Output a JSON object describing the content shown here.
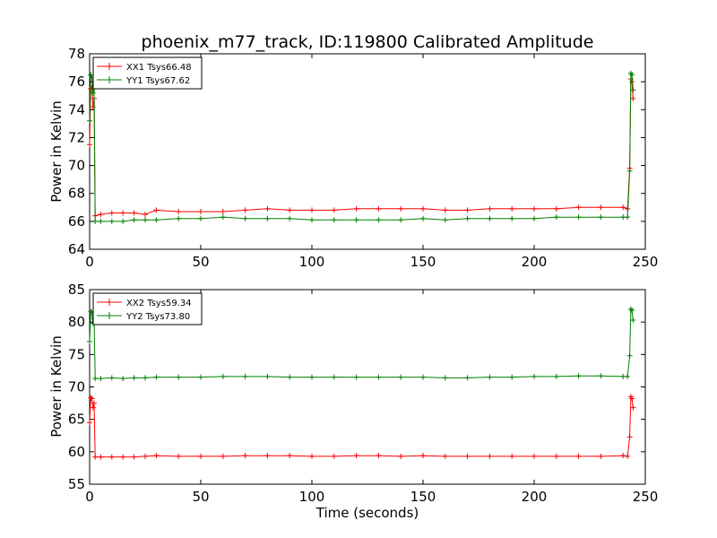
{
  "chart_data": {
    "title": "phoenix_m77_track, ID:119800 Calibrated Amplitude",
    "xlabel": "Time (seconds)",
    "charts": [
      {
        "type": "line",
        "ylabel": "Power in Kelvin",
        "xlim": [
          0,
          250
        ],
        "ylim": [
          64,
          78
        ],
        "xticks": [
          0,
          50,
          100,
          150,
          200,
          250
        ],
        "yticks": [
          64,
          66,
          68,
          70,
          72,
          74,
          76,
          78
        ],
        "legend_position": "top-left",
        "grid": false,
        "series": [
          {
            "name": "XX1 Tsys66.48",
            "color": "#ff0000",
            "points": [
              [
                0,
                71.5
              ],
              [
                0.5,
                75.5
              ],
              [
                1,
                75.6
              ],
              [
                1.5,
                74.2
              ],
              [
                2,
                74.8
              ],
              [
                2.5,
                66.4
              ],
              [
                5,
                66.5
              ],
              [
                10,
                66.6
              ],
              [
                15,
                66.6
              ],
              [
                20,
                66.6
              ],
              [
                25,
                66.5
              ],
              [
                30,
                66.8
              ],
              [
                40,
                66.7
              ],
              [
                50,
                66.7
              ],
              [
                60,
                66.7
              ],
              [
                70,
                66.8
              ],
              [
                80,
                66.9
              ],
              [
                90,
                66.8
              ],
              [
                100,
                66.8
              ],
              [
                110,
                66.8
              ],
              [
                120,
                66.9
              ],
              [
                130,
                66.9
              ],
              [
                140,
                66.9
              ],
              [
                150,
                66.9
              ],
              [
                160,
                66.8
              ],
              [
                170,
                66.8
              ],
              [
                180,
                66.9
              ],
              [
                190,
                66.9
              ],
              [
                200,
                66.9
              ],
              [
                210,
                66.9
              ],
              [
                220,
                67.0
              ],
              [
                230,
                67.0
              ],
              [
                240,
                67.0
              ],
              [
                242,
                66.9
              ],
              [
                243,
                69.8
              ],
              [
                243.5,
                76.2
              ],
              [
                244,
                76.0
              ],
              [
                244.5,
                74.8
              ]
            ]
          },
          {
            "name": "YY1 Tsys67.62",
            "color": "#008000",
            "points": [
              [
                0,
                73.2
              ],
              [
                0.5,
                76.5
              ],
              [
                1,
                76.3
              ],
              [
                1.5,
                75.2
              ],
              [
                2,
                75.6
              ],
              [
                2.5,
                66.0
              ],
              [
                5,
                66.0
              ],
              [
                10,
                66.0
              ],
              [
                15,
                66.0
              ],
              [
                20,
                66.1
              ],
              [
                25,
                66.1
              ],
              [
                30,
                66.1
              ],
              [
                40,
                66.2
              ],
              [
                50,
                66.2
              ],
              [
                60,
                66.3
              ],
              [
                70,
                66.2
              ],
              [
                80,
                66.2
              ],
              [
                90,
                66.2
              ],
              [
                100,
                66.1
              ],
              [
                110,
                66.1
              ],
              [
                120,
                66.1
              ],
              [
                130,
                66.1
              ],
              [
                140,
                66.1
              ],
              [
                150,
                66.2
              ],
              [
                160,
                66.1
              ],
              [
                170,
                66.2
              ],
              [
                180,
                66.2
              ],
              [
                190,
                66.2
              ],
              [
                200,
                66.2
              ],
              [
                210,
                66.3
              ],
              [
                220,
                66.3
              ],
              [
                230,
                66.3
              ],
              [
                240,
                66.3
              ],
              [
                242,
                66.3
              ],
              [
                243,
                69.6
              ],
              [
                243.5,
                76.6
              ],
              [
                244,
                76.5
              ],
              [
                244.5,
                75.4
              ]
            ]
          }
        ]
      },
      {
        "type": "line",
        "ylabel": "Power in Kelvin",
        "xlim": [
          0,
          250
        ],
        "ylim": [
          55,
          85
        ],
        "xticks": [
          0,
          50,
          100,
          150,
          200,
          250
        ],
        "yticks": [
          55,
          60,
          65,
          70,
          75,
          80,
          85
        ],
        "legend_position": "top-left",
        "grid": false,
        "series": [
          {
            "name": "XX2 Tsys59.34",
            "color": "#ff0000",
            "points": [
              [
                0,
                64.5
              ],
              [
                0.5,
                68.3
              ],
              [
                1,
                68.2
              ],
              [
                1.5,
                66.8
              ],
              [
                2,
                67.5
              ],
              [
                2.5,
                59.2
              ],
              [
                5,
                59.2
              ],
              [
                10,
                59.2
              ],
              [
                15,
                59.2
              ],
              [
                20,
                59.2
              ],
              [
                25,
                59.3
              ],
              [
                30,
                59.4
              ],
              [
                40,
                59.3
              ],
              [
                50,
                59.3
              ],
              [
                60,
                59.3
              ],
              [
                70,
                59.4
              ],
              [
                80,
                59.4
              ],
              [
                90,
                59.4
              ],
              [
                100,
                59.3
              ],
              [
                110,
                59.3
              ],
              [
                120,
                59.4
              ],
              [
                130,
                59.4
              ],
              [
                140,
                59.3
              ],
              [
                150,
                59.4
              ],
              [
                160,
                59.3
              ],
              [
                170,
                59.3
              ],
              [
                180,
                59.3
              ],
              [
                190,
                59.3
              ],
              [
                200,
                59.3
              ],
              [
                210,
                59.3
              ],
              [
                220,
                59.3
              ],
              [
                230,
                59.3
              ],
              [
                240,
                59.4
              ],
              [
                242,
                59.3
              ],
              [
                243,
                62.3
              ],
              [
                243.5,
                68.5
              ],
              [
                244,
                68.2
              ],
              [
                244.5,
                66.8
              ]
            ]
          },
          {
            "name": "YY2 Tsys73.80",
            "color": "#008000",
            "points": [
              [
                0,
                77.0
              ],
              [
                0.5,
                81.6
              ],
              [
                1,
                81.5
              ],
              [
                1.5,
                79.8
              ],
              [
                2,
                80.5
              ],
              [
                2.5,
                71.3
              ],
              [
                5,
                71.3
              ],
              [
                10,
                71.4
              ],
              [
                15,
                71.3
              ],
              [
                20,
                71.4
              ],
              [
                25,
                71.4
              ],
              [
                30,
                71.5
              ],
              [
                40,
                71.5
              ],
              [
                50,
                71.5
              ],
              [
                60,
                71.6
              ],
              [
                70,
                71.6
              ],
              [
                80,
                71.6
              ],
              [
                90,
                71.5
              ],
              [
                100,
                71.5
              ],
              [
                110,
                71.5
              ],
              [
                120,
                71.5
              ],
              [
                130,
                71.5
              ],
              [
                140,
                71.5
              ],
              [
                150,
                71.5
              ],
              [
                160,
                71.4
              ],
              [
                170,
                71.4
              ],
              [
                180,
                71.5
              ],
              [
                190,
                71.5
              ],
              [
                200,
                71.6
              ],
              [
                210,
                71.6
              ],
              [
                220,
                71.7
              ],
              [
                230,
                71.7
              ],
              [
                240,
                71.6
              ],
              [
                242,
                71.6
              ],
              [
                243,
                74.8
              ],
              [
                243.5,
                82.0
              ],
              [
                244,
                81.8
              ],
              [
                244.5,
                80.3
              ]
            ]
          }
        ]
      }
    ]
  }
}
